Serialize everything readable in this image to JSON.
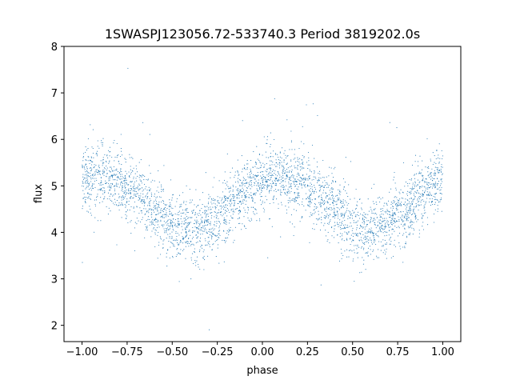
{
  "chart_data": {
    "type": "scatter",
    "title": "1SWASPJ123056.72-533740.3 Period 3819202.0s",
    "xlabel": "phase",
    "ylabel": "flux",
    "xlim": [
      -1.1,
      1.1
    ],
    "ylim": [
      1.65,
      8.0
    ],
    "x_ticks": [
      -1.0,
      -0.75,
      -0.5,
      -0.25,
      0.0,
      0.25,
      0.5,
      0.75,
      1.0
    ],
    "x_tick_labels": [
      "−1.00",
      "−0.75",
      "−0.50",
      "−0.25",
      "0.00",
      "0.25",
      "0.50",
      "0.75",
      "1.00"
    ],
    "y_ticks": [
      2,
      3,
      4,
      5,
      6,
      7,
      8
    ],
    "y_tick_labels": [
      "2",
      "3",
      "4",
      "5",
      "6",
      "7",
      "8"
    ],
    "grid": false,
    "marker_color": "#1f77b4",
    "series": [
      {
        "phase_profile": {
          "x": [
            -1.0,
            -0.9,
            -0.8,
            -0.7,
            -0.6,
            -0.5,
            -0.45,
            -0.4,
            -0.35,
            -0.3,
            -0.25,
            -0.2,
            -0.1,
            0.0,
            0.1,
            0.2,
            0.3,
            0.4,
            0.5,
            0.55,
            0.6,
            0.65,
            0.7,
            0.75,
            0.8,
            0.9,
            1.0
          ],
          "y": [
            5.2,
            5.15,
            5.1,
            4.85,
            4.5,
            4.15,
            4.05,
            4.05,
            4.1,
            4.2,
            4.35,
            4.5,
            4.8,
            5.2,
            5.15,
            5.1,
            4.85,
            4.5,
            4.15,
            4.05,
            4.05,
            4.1,
            4.2,
            4.35,
            4.5,
            4.8,
            5.2
          ],
          "scatter_sigma": 0.35
        }
      }
    ]
  }
}
